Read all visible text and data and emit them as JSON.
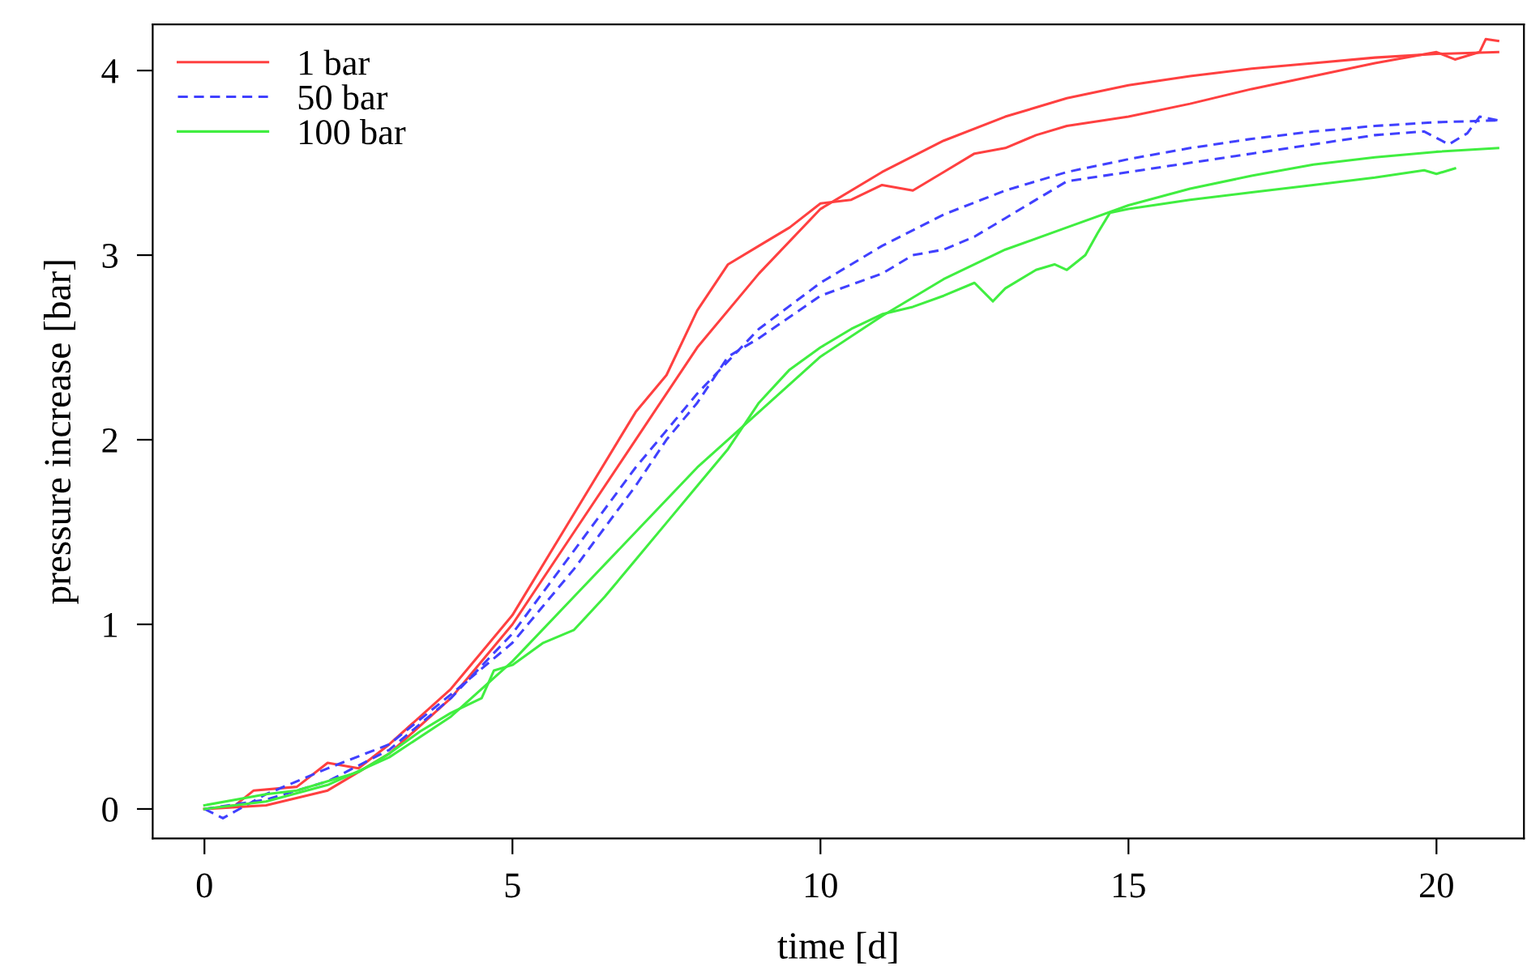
{
  "chart_data": {
    "type": "line",
    "xlabel": "time [d]",
    "ylabel": "pressure increase [bar]",
    "xlim": [
      -0.84,
      21.42
    ],
    "ylim": [
      -0.16,
      4.25
    ],
    "xticks": [
      0,
      5,
      10,
      15,
      20
    ],
    "yticks": [
      0,
      1,
      2,
      3,
      4
    ],
    "grid": false,
    "legend": "top left",
    "marker": "none",
    "series": [
      {
        "name": "1 bar",
        "color": "#ff4040",
        "line_style": "solid",
        "x": [
          0,
          1,
          2,
          3,
          4,
          5,
          6,
          7,
          8,
          9,
          10,
          11,
          12,
          13,
          14,
          15,
          16,
          17,
          18,
          19,
          20,
          21
        ],
        "values": [
          0,
          0.02,
          0.1,
          0.3,
          0.6,
          1.0,
          1.5,
          2.0,
          2.5,
          2.9,
          3.25,
          3.45,
          3.62,
          3.75,
          3.85,
          3.92,
          3.97,
          4.01,
          4.04,
          4.07,
          4.09,
          4.1
        ]
      },
      {
        "color": "#ff4040",
        "line_style": "solid",
        "x": [
          0,
          0.5,
          0.8,
          1.5,
          2,
          2.5,
          3,
          4,
          4.5,
          5,
          6,
          7,
          7.5,
          8,
          8.5,
          9,
          9.5,
          10,
          10.5,
          11,
          11.5,
          12,
          12.5,
          13,
          13.5,
          14,
          15,
          16,
          17,
          18,
          19,
          20,
          20.3,
          20.7,
          20.8,
          21
        ],
        "values": [
          0,
          0.02,
          0.1,
          0.12,
          0.25,
          0.22,
          0.35,
          0.65,
          0.85,
          1.05,
          1.6,
          2.15,
          2.35,
          2.7,
          2.95,
          3.05,
          3.15,
          3.28,
          3.3,
          3.38,
          3.35,
          3.45,
          3.55,
          3.58,
          3.65,
          3.7,
          3.75,
          3.82,
          3.9,
          3.97,
          4.04,
          4.1,
          4.06,
          4.1,
          4.17,
          4.16
        ]
      },
      {
        "name": "50 bar",
        "color": "#4040ff",
        "line_style": "dashed",
        "x": [
          0,
          1,
          2,
          3,
          4,
          5,
          6,
          7,
          8,
          9,
          10,
          11,
          12,
          13,
          14,
          15,
          16,
          17,
          18,
          19,
          20,
          21
        ],
        "values": [
          0,
          0.05,
          0.15,
          0.32,
          0.6,
          0.95,
          1.4,
          1.85,
          2.25,
          2.6,
          2.85,
          3.05,
          3.22,
          3.35,
          3.45,
          3.52,
          3.58,
          3.63,
          3.67,
          3.7,
          3.72,
          3.73
        ]
      },
      {
        "color": "#4040ff",
        "line_style": "dashed",
        "x": [
          0,
          0.3,
          1,
          2,
          3,
          4,
          5,
          6,
          7,
          7.5,
          8,
          8.5,
          9,
          10,
          11,
          11.5,
          12,
          12.5,
          13,
          13.5,
          14,
          15,
          16,
          17,
          18,
          19,
          19.8,
          20.2,
          20.5,
          20.7,
          21
        ],
        "values": [
          0,
          -0.05,
          0.08,
          0.22,
          0.35,
          0.62,
          0.9,
          1.3,
          1.75,
          2.0,
          2.2,
          2.45,
          2.55,
          2.78,
          2.9,
          3.0,
          3.03,
          3.1,
          3.2,
          3.3,
          3.4,
          3.45,
          3.5,
          3.55,
          3.6,
          3.65,
          3.67,
          3.6,
          3.66,
          3.75,
          3.73
        ]
      },
      {
        "name": "100 bar",
        "color": "#40ee40",
        "line_style": "solid",
        "x": [
          0,
          1,
          2,
          3,
          4,
          5,
          6,
          7,
          8,
          9,
          10,
          11,
          12,
          13,
          14,
          15,
          16,
          17,
          18,
          19,
          20,
          21
        ],
        "values": [
          0,
          0.04,
          0.13,
          0.28,
          0.5,
          0.8,
          1.15,
          1.5,
          1.85,
          2.15,
          2.45,
          2.67,
          2.87,
          3.03,
          3.15,
          3.27,
          3.36,
          3.43,
          3.49,
          3.53,
          3.56,
          3.58
        ]
      },
      {
        "color": "#40ee40",
        "line_style": "solid",
        "x": [
          0,
          1,
          1.5,
          2,
          2.5,
          3,
          3.5,
          4,
          4.5,
          4.7,
          5,
          5.5,
          6,
          6.5,
          7,
          7.5,
          8,
          8.5,
          9,
          9.5,
          10,
          10.5,
          11,
          11.5,
          12,
          12.5,
          12.8,
          13,
          13.5,
          13.8,
          14,
          14.3,
          14.5,
          14.7,
          15,
          16,
          17,
          18,
          19,
          19.8,
          20,
          20.3
        ],
        "values": [
          0.02,
          0.08,
          0.1,
          0.15,
          0.2,
          0.3,
          0.42,
          0.52,
          0.6,
          0.75,
          0.78,
          0.9,
          0.97,
          1.15,
          1.35,
          1.55,
          1.75,
          1.95,
          2.2,
          2.38,
          2.5,
          2.6,
          2.68,
          2.72,
          2.78,
          2.85,
          2.75,
          2.82,
          2.92,
          2.95,
          2.92,
          3.0,
          3.12,
          3.23,
          3.25,
          3.3,
          3.34,
          3.38,
          3.42,
          3.46,
          3.44,
          3.47
        ]
      }
    ]
  }
}
